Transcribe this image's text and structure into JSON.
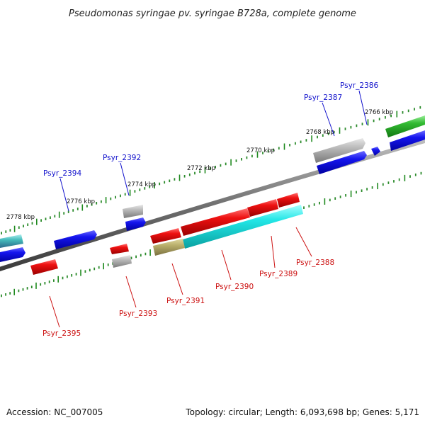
{
  "title": "Pseudomonas syringae pv. syringae B728a, complete genome",
  "footer": {
    "accession": "Accession: NC_007005",
    "summary": "Topology: circular; Length: 6,093,698 bp; Genes: 5,171"
  },
  "colors": {
    "forward_label": "#1111cc",
    "reverse_label": "#cc1111",
    "blue": "#1010dd",
    "gray": "#b0b0b0",
    "red": "#ee1111",
    "cyan": "#11dddd",
    "olive": "#b8ae6a",
    "green": "#33bb33",
    "teal": "#44bbbb"
  },
  "scale_labels": [
    "2766 kbp",
    "2768 kbp",
    "2770 kbp",
    "2772 kbp",
    "2774 kbp",
    "2776 kbp",
    "2778 kbp"
  ],
  "gene_labels": {
    "forward": [
      "Psyr_2386",
      "Psyr_2387",
      "Psyr_2392",
      "Psyr_2394"
    ],
    "reverse": [
      "Psyr_2388",
      "Psyr_2389",
      "Psyr_2390",
      "Psyr_2391",
      "Psyr_2393",
      "Psyr_2395"
    ]
  }
}
